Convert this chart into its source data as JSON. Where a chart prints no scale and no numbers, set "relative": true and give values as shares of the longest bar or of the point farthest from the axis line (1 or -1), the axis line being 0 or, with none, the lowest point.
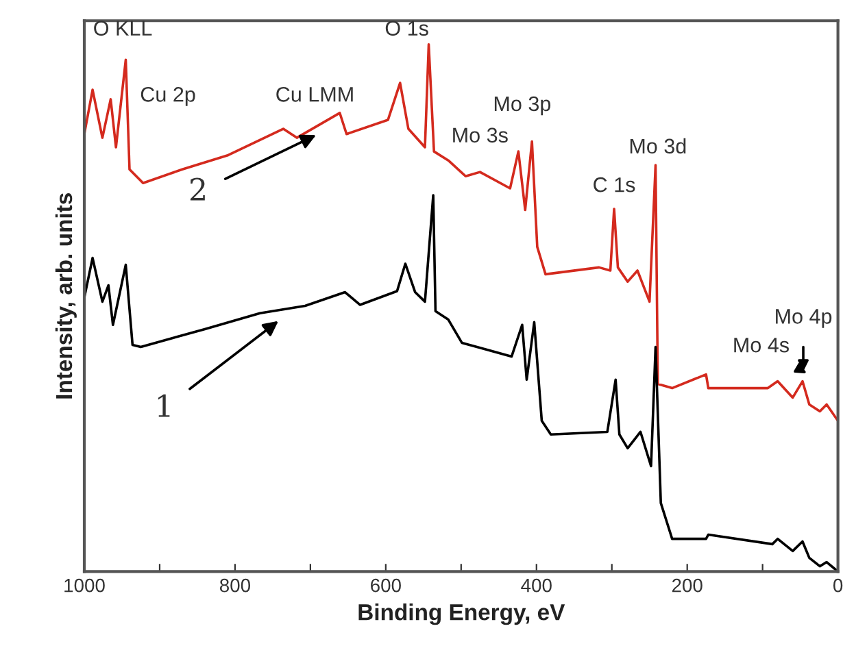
{
  "chart_data": {
    "type": "line",
    "relative": true,
    "xlabel": "Binding Energy, eV",
    "ylabel": "Intensity, arb. units",
    "xlim": [
      1000,
      0
    ],
    "xticks": [
      1000,
      {
        "value": 900,
        "label": null
      },
      800,
      {
        "value": 700,
        "label": null
      },
      600,
      {
        "value": 500,
        "label": null
      },
      400,
      {
        "value": 300,
        "label": null
      },
      200,
      {
        "value": 100,
        "label": null
      },
      0
    ],
    "tick_labels": "x",
    "grid": false,
    "legend": false,
    "marker": "none",
    "line_style": "solid",
    "series": [
      {
        "color": "#d42a1e",
        "x": [
          1000,
          989,
          976,
          965,
          958,
          945,
          940,
          922,
          870,
          809,
          736,
          718,
          661,
          652,
          597,
          581,
          570,
          548,
          543,
          536,
          517,
          494,
          475,
          435,
          424,
          415,
          406,
          399,
          388,
          317,
          302,
          297,
          292,
          279,
          266,
          250,
          242,
          239,
          220,
          175,
          172,
          93,
          80,
          60,
          47,
          38,
          24,
          15,
          0
        ],
        "values": [
          0.83,
          0.914,
          0.823,
          0.896,
          0.805,
          0.971,
          0.763,
          0.737,
          0.763,
          0.79,
          0.84,
          0.823,
          0.87,
          0.83,
          0.857,
          0.927,
          0.84,
          0.805,
          1.0,
          0.797,
          0.78,
          0.75,
          0.758,
          0.727,
          0.797,
          0.686,
          0.816,
          0.616,
          0.564,
          0.577,
          0.571,
          0.688,
          0.577,
          0.55,
          0.571,
          0.512,
          0.771,
          0.356,
          0.348,
          0.374,
          0.348,
          0.348,
          0.361,
          0.33,
          0.361,
          0.317,
          0.304,
          0.317,
          0.286
        ]
      },
      {
        "color": "#000000",
        "x": [
          1000,
          989,
          976,
          968,
          962,
          945,
          936,
          925,
          840,
          767,
          707,
          654,
          634,
          585,
          574,
          561,
          548,
          537,
          534,
          517,
          499,
          433,
          419,
          413,
          403,
          393,
          381,
          306,
          295,
          290,
          279,
          262,
          248,
          242,
          235,
          220,
          175,
          172,
          87,
          80,
          60,
          47,
          38,
          24,
          15,
          0
        ],
        "values": [
          0.52,
          0.595,
          0.512,
          0.543,
          0.468,
          0.582,
          0.43,
          0.426,
          0.46,
          0.49,
          0.504,
          0.53,
          0.506,
          0.532,
          0.584,
          0.53,
          0.512,
          0.714,
          0.494,
          0.478,
          0.434,
          0.408,
          0.468,
          0.364,
          0.473,
          0.286,
          0.26,
          0.265,
          0.364,
          0.26,
          0.234,
          0.265,
          0.2,
          0.426,
          0.13,
          0.062,
          0.062,
          0.07,
          0.052,
          0.062,
          0.039,
          0.057,
          0.026,
          0.01,
          0.018,
          0.0
        ]
      }
    ],
    "annotations": [
      "O KLL",
      "Cu 2p",
      "Cu LMM",
      "O 1s",
      "Mo 3s",
      "Mo 3p",
      "C 1s",
      "Mo 3d",
      "Mo 4s",
      "Mo 4p",
      "1",
      "2"
    ]
  }
}
